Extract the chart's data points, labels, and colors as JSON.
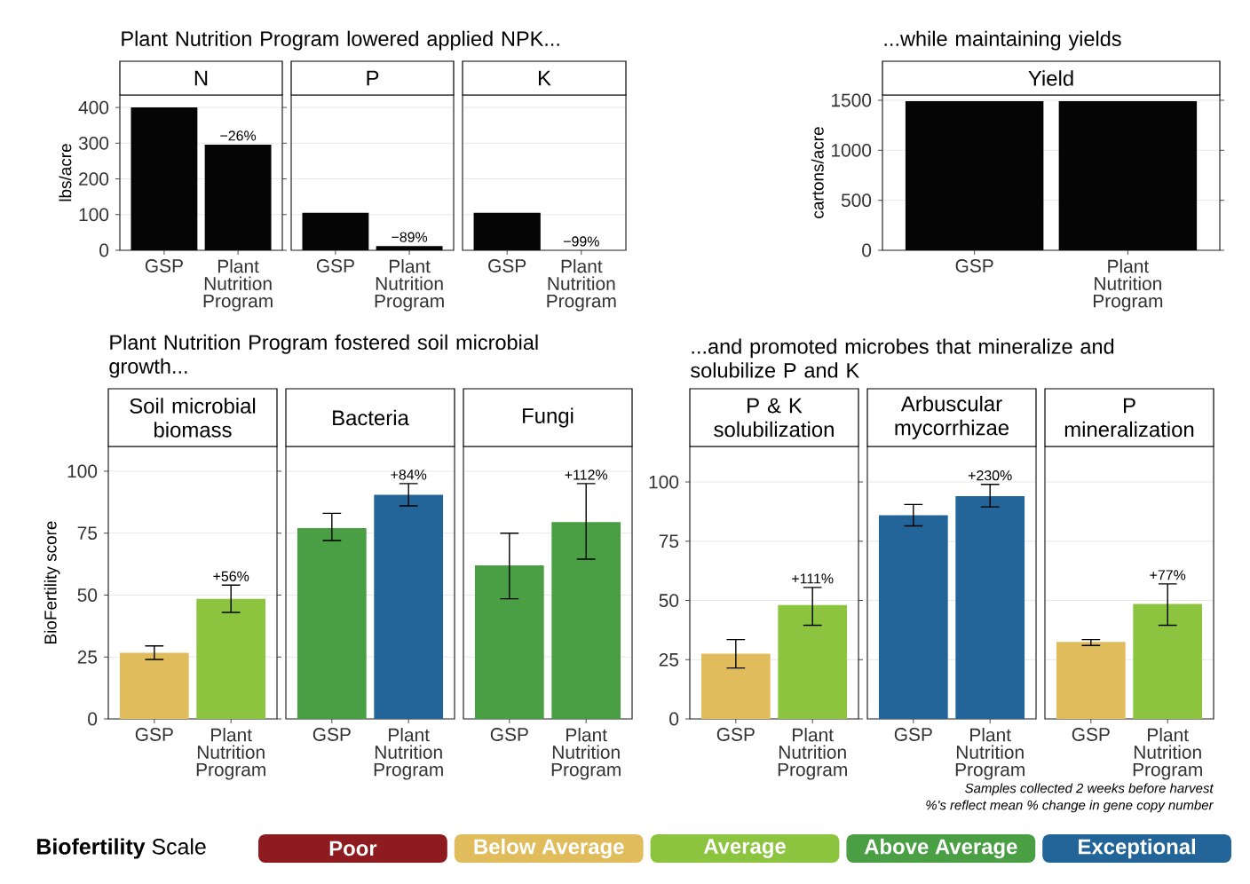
{
  "chart_data": [
    {
      "type": "bar",
      "title": "N",
      "annotations": [
        "Plant Nutrition Program lowered applied NPK...",
        {
          "text": "−26%",
          "x": "Plant Nutrition Program",
          "y": 296
        }
      ],
      "ylabel": "lbs/acre",
      "categories": [
        "GSP",
        "Plant Nutrition Program"
      ],
      "values": [
        400,
        296
      ],
      "color": "#050505",
      "ylim": [
        0,
        435
      ],
      "yticks": [
        0,
        100,
        200,
        300,
        400
      ],
      "grid": "y"
    },
    {
      "type": "bar",
      "title": "P",
      "annotations": [
        {
          "text": "−89%",
          "x": "Plant Nutrition Program",
          "y": 12
        }
      ],
      "categories": [
        "GSP",
        "Plant Nutrition Program"
      ],
      "values": [
        105,
        12
      ],
      "color": "#050505",
      "ylim": [
        0,
        435
      ],
      "yticks": [
        0,
        100,
        200,
        300,
        400
      ],
      "grid": "y",
      "tick_labels": "x"
    },
    {
      "type": "bar",
      "title": "K",
      "annotations": [
        "−99%"
      ],
      "categories": [
        "GSP",
        "Plant Nutrition Program"
      ],
      "values": [
        105,
        null
      ],
      "color": "#050505",
      "ylim": [
        0,
        435
      ],
      "yticks": [
        0,
        100,
        200,
        300,
        400
      ],
      "grid": "y",
      "tick_labels": "x"
    },
    {
      "type": "bar",
      "title": "Yield",
      "annotations": [
        "...while maintaining yields"
      ],
      "ylabel": "cartons/acre",
      "categories": [
        "GSP",
        "Plant Nutrition Program"
      ],
      "values": [
        1490,
        1490
      ],
      "color": "#050505",
      "ylim": [
        0,
        1553
      ],
      "yticks": [
        0,
        500,
        1000,
        1500
      ],
      "grid": "y"
    },
    {
      "type": "bar",
      "title": "Soil microbial biomass",
      "annotations": [
        "Plant Nutrition Program fostered soil microbial growth...",
        {
          "text": "+56%",
          "x": "Plant Nutrition Program",
          "y": 54
        }
      ],
      "ylabel": "BioFertility score",
      "categories": [
        "GSP",
        "Plant Nutrition Program"
      ],
      "values": [
        26.7,
        48.5
      ],
      "colors": [
        "#e0bc5c",
        "#8cc43f"
      ],
      "errors": [
        [
          24,
          29.5
        ],
        [
          43,
          54
        ]
      ],
      "ylim": [
        0,
        110
      ],
      "yticks": [
        0,
        25,
        50,
        75,
        100
      ],
      "grid": "y"
    },
    {
      "type": "bar",
      "title": "Bacteria",
      "annotations": [
        {
          "text": "+84%",
          "x": "Plant Nutrition Program",
          "y": 95
        }
      ],
      "categories": [
        "GSP",
        "Plant Nutrition Program"
      ],
      "values": [
        77,
        90.5
      ],
      "colors": [
        "#4a9f44",
        "#236598"
      ],
      "errors": [
        [
          72,
          83
        ],
        [
          86,
          95
        ]
      ],
      "ylim": [
        0,
        110
      ],
      "yticks": [
        0,
        25,
        50,
        75,
        100
      ],
      "grid": "y",
      "tick_labels": "x"
    },
    {
      "type": "bar",
      "title": "Fungi",
      "annotations": [
        {
          "text": "+112%",
          "x": "Plant Nutrition Program",
          "y": 95
        }
      ],
      "categories": [
        "GSP",
        "Plant Nutrition Program"
      ],
      "values": [
        62,
        79.5
      ],
      "colors": [
        "#4a9f44",
        "#4a9f44"
      ],
      "errors": [
        [
          48.5,
          75
        ],
        [
          64.5,
          95
        ]
      ],
      "ylim": [
        0,
        110
      ],
      "yticks": [
        0,
        25,
        50,
        75,
        100
      ],
      "grid": "y",
      "tick_labels": "x"
    },
    {
      "type": "bar",
      "title": "P & K solubilization",
      "annotations": [
        "...and promoted microbes that mineralize and solubilize P and K",
        {
          "text": "+111%",
          "x": "Plant Nutrition Program",
          "y": 55.5
        }
      ],
      "categories": [
        "GSP",
        "Plant Nutrition Program"
      ],
      "values": [
        27.5,
        48
      ],
      "colors": [
        "#e0bc5c",
        "#8cc43f"
      ],
      "errors": [
        [
          21.5,
          33.5
        ],
        [
          39.5,
          55.5
        ]
      ],
      "ylim": [
        0,
        115
      ],
      "yticks": [
        0,
        25,
        50,
        75,
        100
      ],
      "grid": "y"
    },
    {
      "type": "bar",
      "title": "Arbuscular mycorrhizae",
      "annotations": [
        {
          "text": "+230%",
          "x": "Plant Nutrition Program",
          "y": 99
        }
      ],
      "categories": [
        "GSP",
        "Plant Nutrition Program"
      ],
      "values": [
        86,
        94
      ],
      "colors": [
        "#236598",
        "#236598"
      ],
      "errors": [
        [
          81.5,
          90.5
        ],
        [
          89.5,
          99
        ]
      ],
      "ylim": [
        0,
        115
      ],
      "yticks": [
        0,
        25,
        50,
        75,
        100
      ],
      "grid": "y",
      "tick_labels": "x"
    },
    {
      "type": "bar",
      "title": "P mineralization",
      "annotations": [
        {
          "text": "+77%",
          "x": "Plant Nutrition Program",
          "y": 57
        },
        "Samples collected 2 weeks before harvest",
        "%'s reflect mean % change in gene copy number"
      ],
      "categories": [
        "GSP",
        "Plant Nutrition Program"
      ],
      "values": [
        32.5,
        48.5
      ],
      "colors": [
        "#e0bc5c",
        "#8cc43f"
      ],
      "errors": [
        [
          31,
          33.5
        ],
        [
          39.5,
          57
        ]
      ],
      "ylim": [
        0,
        115
      ],
      "yticks": [
        0,
        25,
        50,
        75,
        100
      ],
      "grid": "y",
      "tick_labels": "x"
    },
    {
      "type": "other",
      "title": "**Biofertility** Scale",
      "categories": [
        "Poor",
        "Below Average",
        "Average",
        "Above Average",
        "Exceptional"
      ],
      "colors": [
        "#8e1b1f",
        "#e0bc5c",
        "#8cc43f",
        "#4a9f44",
        "#236598"
      ]
    }
  ]
}
